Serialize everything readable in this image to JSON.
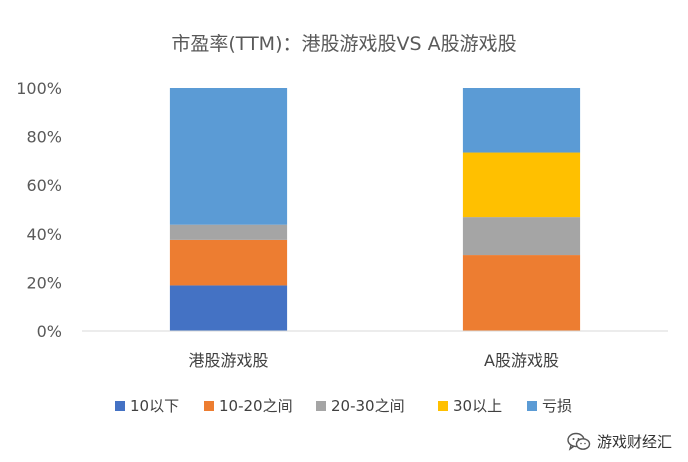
{
  "chart_data": {
    "type": "bar",
    "stacked": true,
    "title": "市盈率(TTM)：港股游戏股VS A股游戏股",
    "categories": [
      "港股游戏股",
      "A股游戏股"
    ],
    "series": [
      {
        "name": "10以下",
        "color": "#4472C4",
        "values": [
          18.75,
          0
        ]
      },
      {
        "name": "10-20之间",
        "color": "#ED7D31",
        "values": [
          18.75,
          31.25
        ]
      },
      {
        "name": "20-30之间",
        "color": "#A5A5A5",
        "values": [
          6.25,
          15.62
        ]
      },
      {
        "name": "30以上",
        "color": "#FFC000",
        "values": [
          0,
          26.57
        ]
      },
      {
        "name": "亏损",
        "color": "#5B9BD5",
        "values": [
          56.25,
          26.56
        ]
      }
    ],
    "ylim": [
      0,
      100
    ],
    "yticks": [
      "0%",
      "20%",
      "40%",
      "60%",
      "80%",
      "100%"
    ],
    "xlabel": "",
    "ylabel": "",
    "legend_position": "bottom"
  },
  "watermark": {
    "text": "游戏财经汇",
    "icon": "wechat-icon"
  }
}
